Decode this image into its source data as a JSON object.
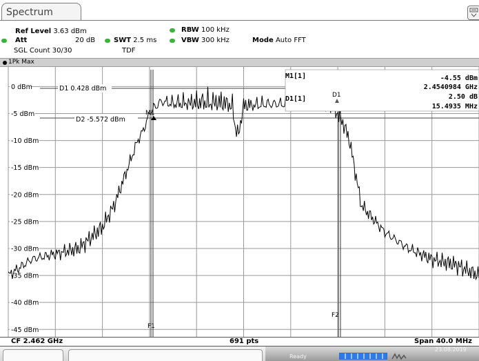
{
  "tab": {
    "title": "Spectrum"
  },
  "header": {
    "ref_level_label": "Ref Level",
    "ref_level_value": "3.63 dBm",
    "att_label": "Att",
    "att_value": "20 dB",
    "swt_label": "SWT",
    "swt_value": "2.5 ms",
    "rbw_label": "RBW",
    "rbw_value": "100 kHz",
    "vbw_label": "VBW",
    "vbw_value": "300 kHz",
    "mode_label": "Mode",
    "mode_value": "Auto FFT",
    "sgl_count": "SGL Count 30/30",
    "tdf": "TDF"
  },
  "trace": {
    "label": "1Pk Max"
  },
  "markers": {
    "m1_label": "M1[1]",
    "m1_level": "-4.55 dBm",
    "m1_freq": "2.4540984 GHz",
    "d1_label": "D1[1]",
    "d1_level": "2.50 dB",
    "d1_freq": "15.4935 MHz",
    "d1_line": "D1  0.428 dBm",
    "d2_line": "D2  -5.572 dBm",
    "f1": "F1",
    "f2": "F2",
    "m1_tag": "M1",
    "d1_tag": "D1"
  },
  "footer": {
    "cf": "CF 2.462 GHz",
    "pts": "691 pts",
    "span": "Span 40.0 MHz"
  },
  "status": {
    "ready": "Ready",
    "date": "23.08.2019",
    "progress": 1.0
  },
  "colors": {
    "dot_green": "#3db23d",
    "trace": "#000000",
    "grid": "#7a7a7a"
  },
  "chart_data": {
    "type": "line",
    "xlabel": "",
    "ylabel": "",
    "ylim": [
      -46.37,
      3.63
    ],
    "xlim": [
      2.442,
      2.482
    ],
    "y_ticks": [
      "0 dBm",
      "-5 dBm",
      "-10 dBm",
      "-15 dBm",
      "-20 dBm",
      "-25 dBm",
      "-30 dBm",
      "-35 dBm",
      "-40 dBm",
      "-45 dBm"
    ],
    "y_tick_values": [
      0,
      -5,
      -10,
      -15,
      -20,
      -25,
      -30,
      -35,
      -40,
      -45
    ],
    "reference_lines": [
      {
        "name": "D1",
        "value": 0.428
      },
      {
        "name": "D2",
        "value": -5.572
      }
    ],
    "vertical_lines": [
      {
        "name": "F1",
        "x": 2.454
      },
      {
        "name": "F2",
        "x": 2.47
      }
    ],
    "series": [
      {
        "x": [
          2.442,
          2.444,
          2.446,
          2.448,
          2.45,
          2.451,
          2.452,
          2.453,
          2.4535,
          2.454,
          2.455,
          2.456,
          2.458,
          2.46,
          2.461,
          2.4615,
          2.462,
          2.464,
          2.466,
          2.468,
          2.4695,
          2.47,
          2.4705,
          2.471,
          2.4715,
          2.472,
          2.474,
          2.476,
          2.478,
          2.48,
          2.482
        ],
        "values": [
          -35,
          -32,
          -31,
          -30,
          -26,
          -22,
          -16,
          -10,
          -8,
          -5,
          -3,
          -3.5,
          -3.5,
          -3.5,
          -4,
          -10,
          -4,
          -3.5,
          -3.5,
          -3.5,
          -4,
          -5,
          -7,
          -10,
          -16,
          -22,
          -27,
          -30,
          -32,
          -33,
          -35
        ]
      }
    ]
  }
}
